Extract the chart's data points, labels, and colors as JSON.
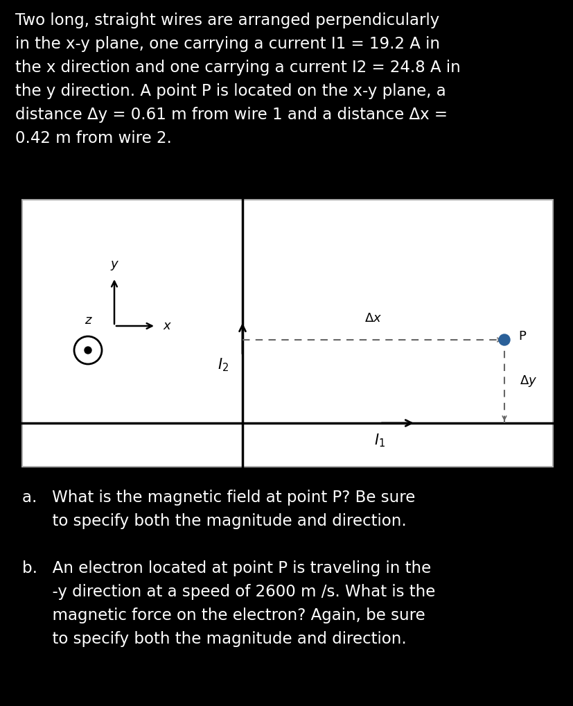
{
  "bg_color": "#000000",
  "text_color": "#ffffff",
  "diagram_bg": "#ffffff",
  "diagram_border": "#aaaaaa",
  "para_line1": "Two long, straight wires are arranged perpendicularly",
  "para_line2": "in the x-y plane, one carrying a current I1 = 19.2 A in",
  "para_line3": "the x direction and one carrying a current I2 = 24.8 A in",
  "para_line4": "the y direction. A point P is located on the x-y plane, a",
  "para_line5": "distance Δy = 0.61 m from wire 1 and a distance Δx =",
  "para_line6": "0.42 m from wire 2.",
  "qa_line1": "a.   What is the magnetic field at point P? Be sure",
  "qa_line2": "      to specify both the magnitude and direction.",
  "qb_line1": "b.   An electron located at point P is traveling in the",
  "qb_line2": "      -y direction at a speed of 2600 m /s. What is the",
  "qb_line3": "      magnetic force on the electron? Again, be sure",
  "qb_line4": "      to specify both the magnitude and direction.",
  "wire1_color": "#000000",
  "wire2_color": "#000000",
  "dashed_color": "#666666",
  "point_color": "#2a6099",
  "font_size_para": 16.5,
  "font_size_question": 16.5,
  "font_size_diagram_label": 13,
  "font_size_diagram_italic": 13
}
